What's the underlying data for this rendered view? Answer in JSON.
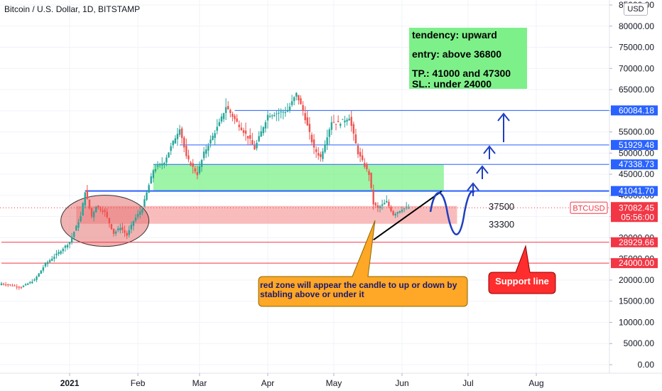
{
  "header": {
    "symbol_title": "Bitcoin / U.S. Dollar, 1D, BITSTAMP",
    "currency_button": "USD"
  },
  "chart_data": {
    "type": "candlestick",
    "symbol": "BTCUSD",
    "y_ticks": [
      0,
      5000,
      10000,
      15000,
      20000,
      25000,
      30000,
      35000,
      40000,
      45000,
      50000,
      55000,
      60000,
      65000,
      70000,
      75000,
      80000,
      85000
    ],
    "y_tick_labels": [
      "0.00",
      "5000.00",
      "10000.00",
      "15000.00",
      "20000.00",
      "25000.00",
      "30000.00",
      "35000.00",
      "40000.00",
      "45000.00",
      "50000.00",
      "55000.00",
      "60000.00",
      "65000.00",
      "70000.00",
      "75000.00",
      "80000.00",
      "85000.00"
    ],
    "ylim": [
      -1000,
      86000
    ],
    "x_range": [
      "2020-12-01",
      "2021-08-31"
    ],
    "x_ticks": [
      {
        "date": "2021-01-01",
        "label": "2021"
      },
      {
        "date": "2021-02-01",
        "label": "Feb"
      },
      {
        "date": "2021-03-01",
        "label": "Mar"
      },
      {
        "date": "2021-04-01",
        "label": "Apr"
      },
      {
        "date": "2021-05-01",
        "label": "May"
      },
      {
        "date": "2021-06-01",
        "label": "Jun"
      },
      {
        "date": "2021-07-01",
        "label": "Jul"
      },
      {
        "date": "2021-08-01",
        "label": "Aug"
      }
    ],
    "price_waypoints": [
      [
        "2020-12-01",
        19200
      ],
      [
        "2020-12-10",
        18300
      ],
      [
        "2020-12-16",
        20000
      ],
      [
        "2020-12-21",
        23800
      ],
      [
        "2020-12-27",
        26500
      ],
      [
        "2021-01-01",
        29000
      ],
      [
        "2021-01-06",
        35000
      ],
      [
        "2021-01-08",
        41000
      ],
      [
        "2021-01-11",
        35000
      ],
      [
        "2021-01-13",
        37500
      ],
      [
        "2021-01-17",
        36000
      ],
      [
        "2021-01-21",
        31000
      ],
      [
        "2021-01-24",
        32500
      ],
      [
        "2021-01-27",
        30500
      ],
      [
        "2021-01-30",
        34000
      ],
      [
        "2021-02-03",
        37000
      ],
      [
        "2021-02-08",
        46000
      ],
      [
        "2021-02-13",
        48000
      ],
      [
        "2021-02-20",
        56000
      ],
      [
        "2021-02-23",
        49000
      ],
      [
        "2021-02-28",
        45000
      ],
      [
        "2021-03-03",
        50000
      ],
      [
        "2021-03-10",
        57000
      ],
      [
        "2021-03-13",
        61000
      ],
      [
        "2021-03-17",
        58000
      ],
      [
        "2021-03-24",
        53000
      ],
      [
        "2021-03-26",
        51000
      ],
      [
        "2021-04-01",
        59000
      ],
      [
        "2021-04-10",
        60000
      ],
      [
        "2021-04-14",
        64000
      ],
      [
        "2021-04-17",
        60000
      ],
      [
        "2021-04-22",
        51000
      ],
      [
        "2021-04-25",
        49000
      ],
      [
        "2021-04-30",
        57500
      ],
      [
        "2021-05-03",
        57000
      ],
      [
        "2021-05-08",
        58500
      ],
      [
        "2021-05-12",
        50000
      ],
      [
        "2021-05-17",
        45000
      ],
      [
        "2021-05-19",
        38000
      ],
      [
        "2021-05-21",
        37000
      ],
      [
        "2021-05-25",
        38500
      ],
      [
        "2021-05-28",
        35500
      ],
      [
        "2021-06-01",
        36800
      ],
      [
        "2021-06-04",
        37100
      ]
    ],
    "horizontal_levels": [
      {
        "price": 60084.18,
        "label": "60084.18",
        "color": "#2962ff",
        "from": "2021-03-17"
      },
      {
        "price": 51929.48,
        "label": "51929.48",
        "color": "#2962ff",
        "from": "2021-02-20"
      },
      {
        "price": 47338.73,
        "label": "47338.73",
        "color": "#2962ff",
        "from": "2021-02-08"
      },
      {
        "price": 41041.7,
        "label": "41041.70",
        "color": "#2962ff",
        "from": "2021-01-08"
      },
      {
        "price": 28929.66,
        "label": "28929.66",
        "color": "#f23645",
        "from": "2020-12-01"
      },
      {
        "price": 24000.0,
        "label": "24000.00",
        "color": "#f23645",
        "from": "2020-12-01"
      }
    ],
    "current_price": {
      "label": "37082.45",
      "countdown": "05:56:00",
      "color": "#f23645",
      "symbol_badge": "BTCUSD"
    },
    "zones": [
      {
        "name": "green-zone",
        "from": "2021-02-08",
        "to": "2021-06-20",
        "top": 47338.73,
        "bottom": 41041.7,
        "color": "#7ef08a"
      },
      {
        "name": "red-zone",
        "from": "2021-01-04",
        "to": "2021-06-26",
        "top": 37500,
        "bottom": 33300,
        "color": "#f7a5a5"
      }
    ],
    "zone_labels": [
      {
        "text": "37500",
        "price": 37500,
        "date": "2021-06-27"
      },
      {
        "text": "33300",
        "price": 33300,
        "date": "2021-06-27"
      }
    ]
  },
  "trade_note": {
    "tendency": "tendency: upward",
    "entry": "entry: above 36800",
    "tp": "TP.:  41000 and 47300",
    "sl": "SL.: under 24000"
  },
  "callout": {
    "text": "red zone will appear the candle to up or down by stabling above or under it",
    "color": "#ffa726"
  },
  "support_callout": {
    "text": "Support line",
    "color": "#ff2d2d"
  }
}
